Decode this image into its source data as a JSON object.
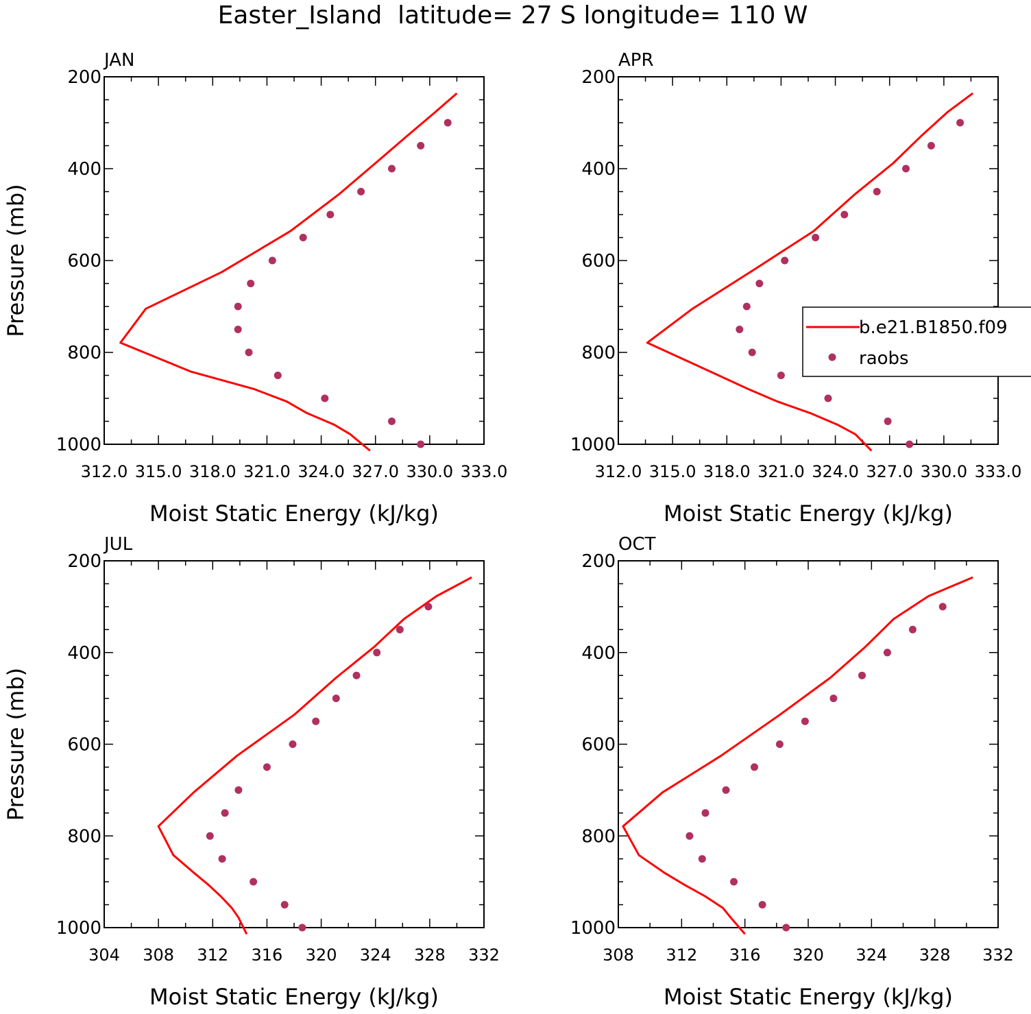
{
  "figure_title": "Easter_Island  latitude= 27 S longitude= 110 W",
  "colors": {
    "model": "#ff0000",
    "obs": "#b03060",
    "axis": "#000000"
  },
  "legend": {
    "model_label": "b.e21.B1850.f09",
    "obs_label": "raobs"
  },
  "chart_data": [
    {
      "type": "line",
      "title": "JAN",
      "xlabel": "Moist Static Energy (kJ/kg)",
      "ylabel": "Pressure (mb)",
      "xlim": [
        312.0,
        333.0
      ],
      "ylim": [
        1000,
        200
      ],
      "xticks": [
        312.0,
        315.0,
        318.0,
        321.0,
        324.0,
        327.0,
        330.0,
        333.0
      ],
      "xtick_labels": [
        "312.0",
        "315.0",
        "318.0",
        "321.0",
        "324.0",
        "327.0",
        "330.0",
        "333.0"
      ],
      "yticks": [
        200,
        400,
        600,
        800,
        1000
      ],
      "series": [
        {
          "name": "b.e21.B1850.f09",
          "kind": "line",
          "pressure": [
            236,
            277,
            327,
            388,
            455,
            536,
            625,
            705,
            779,
            842,
            880,
            907,
            932,
            957,
            978,
            1014
          ],
          "values": [
            331.5,
            330.3,
            328.8,
            327.0,
            325.0,
            322.3,
            318.5,
            314.3,
            312.9,
            316.8,
            320.3,
            322.1,
            323.2,
            324.7,
            325.6,
            326.7
          ]
        },
        {
          "name": "raobs",
          "kind": "scatter",
          "pressure": [
            300,
            350,
            400,
            450,
            500,
            550,
            600,
            650,
            700,
            750,
            800,
            850,
            900,
            950,
            1000
          ],
          "values": [
            331.0,
            329.5,
            327.9,
            326.2,
            324.5,
            323.0,
            321.3,
            320.1,
            319.4,
            319.4,
            320.0,
            321.6,
            324.2,
            327.9,
            329.5
          ]
        }
      ]
    },
    {
      "type": "line",
      "title": "APR",
      "xlabel": "Moist Static Energy (kJ/kg)",
      "ylabel": "",
      "xlim": [
        312.0,
        333.0
      ],
      "ylim": [
        1000,
        200
      ],
      "xticks": [
        312.0,
        315.0,
        318.0,
        321.0,
        324.0,
        327.0,
        330.0,
        333.0
      ],
      "xtick_labels": [
        "312.0",
        "315.0",
        "318.0",
        "321.0",
        "324.0",
        "327.0",
        "330.0",
        "333.0"
      ],
      "yticks": [
        200,
        400,
        600,
        800,
        1000
      ],
      "series": [
        {
          "name": "b.e21.B1850.f09",
          "kind": "line",
          "pressure": [
            236,
            277,
            327,
            388,
            455,
            536,
            625,
            705,
            779,
            842,
            880,
            907,
            932,
            957,
            978,
            1014
          ],
          "values": [
            331.6,
            330.2,
            328.8,
            327.2,
            325.1,
            322.8,
            319.3,
            316.1,
            313.6,
            317.1,
            319.2,
            320.8,
            322.6,
            324.1,
            325.1,
            326.0
          ]
        },
        {
          "name": "raobs",
          "kind": "scatter",
          "pressure": [
            300,
            350,
            400,
            450,
            500,
            550,
            600,
            650,
            700,
            750,
            800,
            850,
            900,
            950,
            1000
          ],
          "values": [
            330.9,
            329.3,
            327.9,
            326.3,
            324.5,
            322.9,
            321.2,
            319.8,
            319.1,
            318.7,
            319.4,
            321.0,
            323.6,
            326.9,
            328.1
          ]
        }
      ]
    },
    {
      "type": "line",
      "title": "JUL",
      "xlabel": "Moist Static Energy (kJ/kg)",
      "ylabel": "Pressure (mb)",
      "xlim": [
        304,
        332
      ],
      "ylim": [
        1000,
        200
      ],
      "xticks": [
        304,
        308,
        312,
        316,
        320,
        324,
        328,
        332
      ],
      "xtick_labels": [
        "304",
        "308",
        "312",
        "316",
        "320",
        "324",
        "328",
        "332"
      ],
      "yticks": [
        200,
        400,
        600,
        800,
        1000
      ],
      "series": [
        {
          "name": "b.e21.B1850.f09",
          "kind": "line",
          "pressure": [
            236,
            277,
            327,
            388,
            455,
            536,
            625,
            705,
            779,
            842,
            880,
            907,
            932,
            957,
            978,
            1014
          ],
          "values": [
            331.1,
            328.5,
            326.1,
            323.9,
            321.1,
            318.0,
            313.8,
            310.6,
            308.0,
            309.1,
            310.6,
            311.7,
            312.6,
            313.4,
            313.9,
            314.5
          ]
        },
        {
          "name": "raobs",
          "kind": "scatter",
          "pressure": [
            300,
            350,
            400,
            450,
            500,
            550,
            600,
            650,
            700,
            750,
            800,
            850,
            900,
            950,
            1000
          ],
          "values": [
            327.9,
            325.8,
            324.1,
            322.6,
            321.1,
            319.6,
            317.9,
            316.0,
            313.9,
            312.9,
            311.8,
            312.7,
            315.0,
            317.3,
            318.6
          ]
        }
      ]
    },
    {
      "type": "line",
      "title": "OCT",
      "xlabel": "Moist Static Energy (kJ/kg)",
      "ylabel": "",
      "xlim": [
        308,
        332
      ],
      "ylim": [
        1000,
        200
      ],
      "xticks": [
        308,
        312,
        316,
        320,
        324,
        328,
        332
      ],
      "xtick_labels": [
        "308",
        "312",
        "316",
        "320",
        "324",
        "328",
        "332"
      ],
      "yticks": [
        200,
        400,
        600,
        800,
        1000
      ],
      "series": [
        {
          "name": "b.e21.B1850.f09",
          "kind": "line",
          "pressure": [
            236,
            277,
            327,
            388,
            455,
            536,
            625,
            705,
            779,
            842,
            880,
            907,
            932,
            957,
            978,
            1014
          ],
          "values": [
            330.4,
            327.6,
            325.4,
            323.6,
            321.4,
            318.2,
            314.5,
            310.8,
            308.3,
            309.3,
            310.9,
            312.2,
            313.5,
            314.6,
            315.1,
            316.0
          ]
        },
        {
          "name": "raobs",
          "kind": "scatter",
          "pressure": [
            300,
            350,
            400,
            450,
            500,
            550,
            600,
            650,
            700,
            750,
            800,
            850,
            900,
            950,
            1000
          ],
          "values": [
            328.5,
            326.6,
            325.0,
            323.4,
            321.6,
            319.8,
            318.2,
            316.6,
            314.8,
            313.5,
            312.5,
            313.3,
            315.3,
            317.1,
            318.6
          ]
        }
      ]
    }
  ]
}
